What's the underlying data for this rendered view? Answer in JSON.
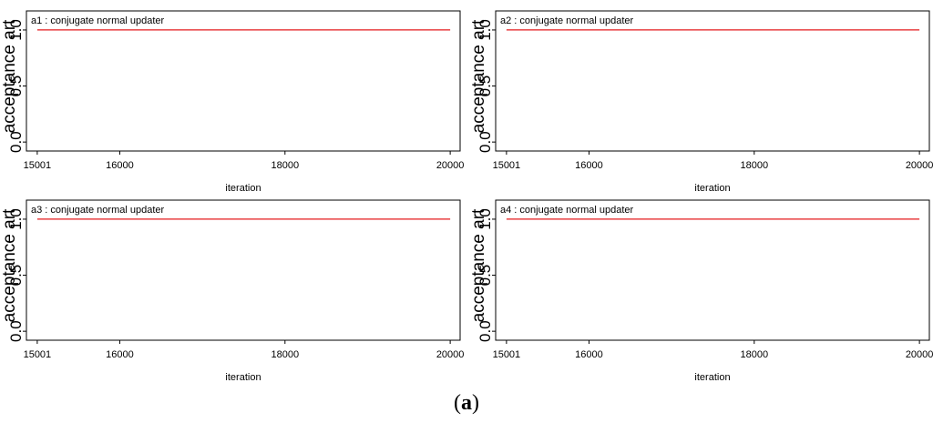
{
  "caption": {
    "open": "(",
    "letter": "a",
    "close": ")"
  },
  "style": {
    "line_color": "#e41a1c",
    "axis_color": "#000000",
    "background": "#ffffff"
  },
  "chart_data": [
    {
      "type": "line",
      "annotation": "a1 :  conjugate normal updater",
      "xlabel": "iteration",
      "ylabel": "acceptance art",
      "xticks": [
        15001,
        16000,
        18000,
        20000
      ],
      "yticks": [
        "0.0",
        "0.5",
        "1.0"
      ],
      "xlim": [
        14870,
        20120
      ],
      "ylim": [
        -0.08,
        1.17
      ],
      "series": [
        {
          "x": [
            15001,
            20000
          ],
          "values": [
            1.0,
            1.0
          ]
        }
      ]
    },
    {
      "type": "line",
      "annotation": "a2 :  conjugate normal updater",
      "xlabel": "iteration",
      "ylabel": "acceptance art",
      "xticks": [
        15001,
        16000,
        18000,
        20000
      ],
      "yticks": [
        "0.0",
        "0.5",
        "1.0"
      ],
      "xlim": [
        14870,
        20120
      ],
      "ylim": [
        -0.08,
        1.17
      ],
      "series": [
        {
          "x": [
            15001,
            20000
          ],
          "values": [
            1.0,
            1.0
          ]
        }
      ]
    },
    {
      "type": "line",
      "annotation": "a3 :  conjugate normal updater",
      "xlabel": "iteration",
      "ylabel": "acceptance art",
      "xticks": [
        15001,
        16000,
        18000,
        20000
      ],
      "yticks": [
        "0.0",
        "0.5",
        "1.0"
      ],
      "xlim": [
        14870,
        20120
      ],
      "ylim": [
        -0.08,
        1.17
      ],
      "series": [
        {
          "x": [
            15001,
            20000
          ],
          "values": [
            1.0,
            1.0
          ]
        }
      ]
    },
    {
      "type": "line",
      "annotation": "a4 :  conjugate normal updater",
      "xlabel": "iteration",
      "ylabel": "acceptance art",
      "xticks": [
        15001,
        16000,
        18000,
        20000
      ],
      "yticks": [
        "0.0",
        "0.5",
        "1.0"
      ],
      "xlim": [
        14870,
        20120
      ],
      "ylim": [
        -0.08,
        1.17
      ],
      "series": [
        {
          "x": [
            15001,
            20000
          ],
          "values": [
            1.0,
            1.0
          ]
        }
      ]
    }
  ]
}
